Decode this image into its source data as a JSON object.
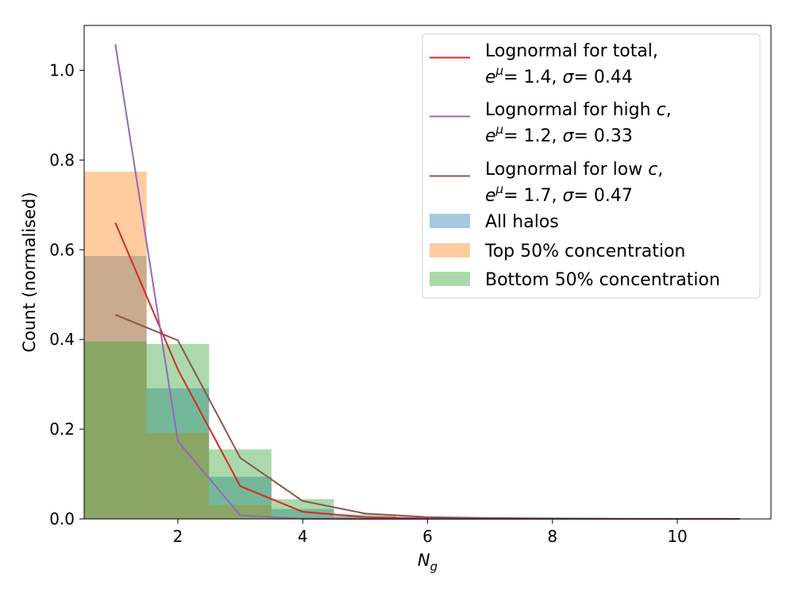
{
  "chart_data": {
    "type": "bar",
    "xlabel_var": "N",
    "xlabel_sub": "g",
    "ylabel": "Count (normalised)",
    "xlim": [
      0.5,
      11.5
    ],
    "ylim": [
      0,
      1.1
    ],
    "xticks": [
      2,
      4,
      6,
      8,
      10
    ],
    "yticks": [
      0.0,
      0.2,
      0.4,
      0.6,
      0.8,
      1.0
    ],
    "legend_position": "top-right",
    "bins": [
      [
        0.5,
        1.5
      ],
      [
        1.5,
        2.5
      ],
      [
        2.5,
        3.5
      ],
      [
        3.5,
        4.5
      ],
      [
        4.5,
        5.5
      ],
      [
        5.5,
        6.5
      ],
      [
        6.5,
        7.5
      ],
      [
        7.5,
        8.5
      ],
      [
        8.5,
        9.5
      ],
      [
        9.5,
        10.5
      ],
      [
        10.5,
        11.5
      ]
    ],
    "histograms": [
      {
        "name": "All halos",
        "color": "#1f77b4",
        "opacity": 0.4,
        "values": [
          0.586,
          0.291,
          0.094,
          0.022,
          0.005,
          0.001,
          0.0005,
          0.0002,
          0.0001,
          0.0001,
          0.0001
        ]
      },
      {
        "name": "Top 50% concentration",
        "color": "#ff7f0e",
        "opacity": 0.4,
        "values": [
          0.774,
          0.192,
          0.031,
          0.004,
          0.001,
          0.0,
          0.0,
          0.0,
          0.0,
          0.0,
          0.0
        ]
      },
      {
        "name": "Bottom 50% concentration",
        "color": "#2ca02c",
        "opacity": 0.4,
        "values": [
          0.396,
          0.39,
          0.155,
          0.044,
          0.01,
          0.003,
          0.001,
          0.0005,
          0.0002,
          0.0001,
          0.0001
        ]
      }
    ],
    "lines": [
      {
        "name_prefix": "Lognormal for total,",
        "name_var": "",
        "name_suffix": "",
        "mu": "1.4",
        "sigma": "0.44",
        "color": "#d62728",
        "x": [
          1,
          2,
          3,
          4,
          5,
          6,
          7,
          8,
          9,
          10,
          11
        ],
        "y": [
          0.66,
          0.333,
          0.073,
          0.016,
          0.004,
          0.001,
          0.0004,
          0.0001,
          0.0,
          0.0,
          0.0
        ]
      },
      {
        "name_prefix": "Lognormal for high ",
        "name_var": "c",
        "name_suffix": ",",
        "mu": "1.2",
        "sigma": "0.33",
        "color": "#9467bd",
        "x": [
          1,
          2,
          3,
          4,
          5,
          6,
          7,
          8,
          9,
          10,
          11
        ],
        "y": [
          1.058,
          0.173,
          0.008,
          0.0005,
          0.0,
          0.0,
          0.0,
          0.0,
          0.0,
          0.0,
          0.0
        ]
      },
      {
        "name_prefix": "Lognormal for low ",
        "name_var": "c",
        "name_suffix": ",",
        "mu": "1.7",
        "sigma": "0.47",
        "color": "#8c564b",
        "x": [
          1,
          2,
          3,
          4,
          5,
          6,
          7,
          8,
          9,
          10,
          11
        ],
        "y": [
          0.455,
          0.398,
          0.136,
          0.04,
          0.012,
          0.004,
          0.002,
          0.001,
          0.0005,
          0.0002,
          0.0001
        ]
      }
    ]
  }
}
